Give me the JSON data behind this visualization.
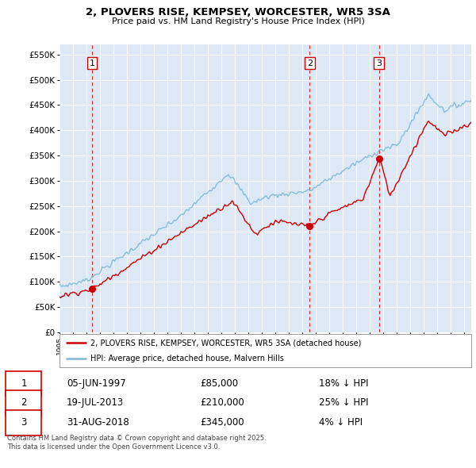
{
  "title": "2, PLOVERS RISE, KEMPSEY, WORCESTER, WR5 3SA",
  "subtitle": "Price paid vs. HM Land Registry's House Price Index (HPI)",
  "ylim": [
    0,
    570000
  ],
  "yticks": [
    0,
    50000,
    100000,
    150000,
    200000,
    250000,
    300000,
    350000,
    400000,
    450000,
    500000,
    550000
  ],
  "ytick_labels": [
    "£0",
    "£50K",
    "£100K",
    "£150K",
    "£200K",
    "£250K",
    "£300K",
    "£350K",
    "£400K",
    "£450K",
    "£500K",
    "£550K"
  ],
  "hpi_color": "#7eb8d4",
  "price_color": "#cc0000",
  "background_color": "#dce8f5",
  "grid_color": "#ffffff",
  "sale_points": [
    {
      "date": 1997.42,
      "price": 85000,
      "label": "1"
    },
    {
      "date": 2013.54,
      "price": 210000,
      "label": "2"
    },
    {
      "date": 2018.66,
      "price": 345000,
      "label": "3"
    }
  ],
  "sale_table": [
    {
      "num": "1",
      "date": "05-JUN-1997",
      "price": "£85,000",
      "hpi": "18% ↓ HPI"
    },
    {
      "num": "2",
      "date": "19-JUL-2013",
      "price": "£210,000",
      "hpi": "25% ↓ HPI"
    },
    {
      "num": "3",
      "date": "31-AUG-2018",
      "price": "£345,000",
      "hpi": "4% ↓ HPI"
    }
  ],
  "legend_entries": [
    "2, PLOVERS RISE, KEMPSEY, WORCESTER, WR5 3SA (detached house)",
    "HPI: Average price, detached house, Malvern Hills"
  ],
  "footer": "Contains HM Land Registry data © Crown copyright and database right 2025.\nThis data is licensed under the Open Government Licence v3.0.",
  "xmin": 1995.0,
  "xmax": 2025.5
}
